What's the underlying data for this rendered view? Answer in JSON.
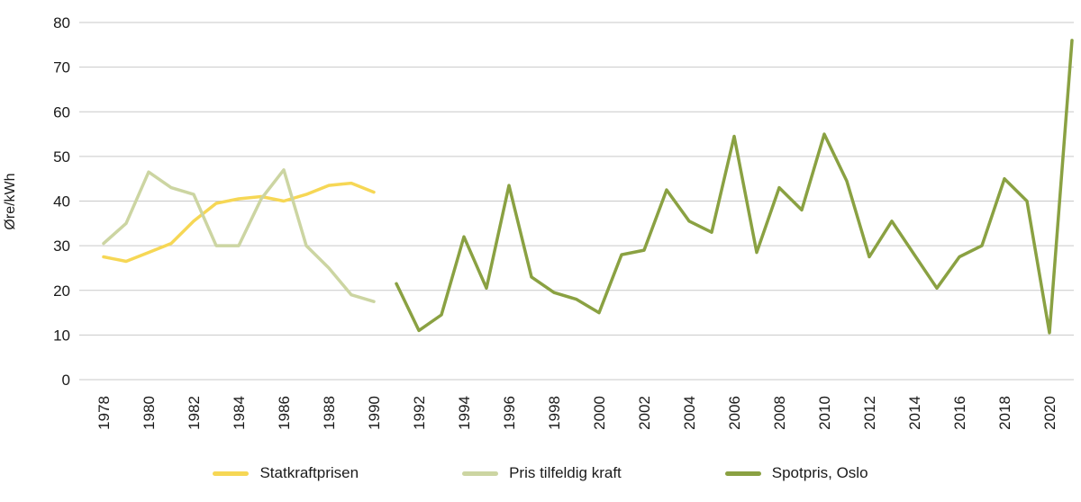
{
  "chart_data": {
    "type": "line",
    "title": "",
    "xlabel": "",
    "ylabel": "Øre/kWh",
    "ylim": [
      0,
      80
    ],
    "y_ticks": [
      0,
      10,
      20,
      30,
      40,
      50,
      60,
      70,
      80
    ],
    "x_tick_labels": [
      "1978",
      "1980",
      "1982",
      "1984",
      "1986",
      "1988",
      "1990",
      "1992",
      "1994",
      "1996",
      "1998",
      "2000",
      "2002",
      "2004",
      "2006",
      "2008",
      "2010",
      "2012",
      "2014",
      "2016",
      "2018",
      "2020"
    ],
    "x": [
      1978,
      1979,
      1980,
      1981,
      1982,
      1983,
      1984,
      1985,
      1986,
      1987,
      1988,
      1989,
      1990,
      1991,
      1992,
      1993,
      1994,
      1995,
      1996,
      1997,
      1998,
      1999,
      2000,
      2001,
      2002,
      2003,
      2004,
      2005,
      2006,
      2007,
      2008,
      2009,
      2010,
      2011,
      2012,
      2013,
      2014,
      2015,
      2016,
      2017,
      2018,
      2019,
      2020,
      2021
    ],
    "grid": "horizontal",
    "legend_position": "bottom",
    "grid_color": "#c9c9c9",
    "text_color": "#1a1a1a",
    "series": [
      {
        "name": "Statkraftprisen",
        "color": "#f6d755",
        "values": [
          27.5,
          26.5,
          28.5,
          30.5,
          35.5,
          39.5,
          40.5,
          41,
          40,
          41.5,
          43.5,
          44,
          42,
          null,
          null,
          null,
          null,
          null,
          null,
          null,
          null,
          null,
          null,
          null,
          null,
          null,
          null,
          null,
          null,
          null,
          null,
          null,
          null,
          null,
          null,
          null,
          null,
          null,
          null,
          null,
          null,
          null,
          null,
          null
        ]
      },
      {
        "name": "Pris tilfeldig kraft",
        "color": "#ccd5a2",
        "values": [
          30.5,
          35,
          46.5,
          43,
          41.5,
          30,
          30,
          40.5,
          47,
          30,
          25,
          19,
          17.5,
          null,
          null,
          null,
          null,
          null,
          null,
          null,
          null,
          null,
          null,
          null,
          null,
          null,
          null,
          null,
          null,
          null,
          null,
          null,
          null,
          null,
          null,
          null,
          null,
          null,
          null,
          null,
          null,
          null,
          null,
          null
        ]
      },
      {
        "name": "Spotpris, Oslo",
        "color": "#8aa142",
        "values": [
          null,
          null,
          null,
          null,
          null,
          null,
          null,
          null,
          null,
          null,
          null,
          null,
          null,
          21.5,
          11,
          14.5,
          32,
          20.5,
          43.5,
          23,
          19.5,
          18,
          15,
          28,
          29,
          42.5,
          35.5,
          33,
          54.5,
          28.5,
          43,
          38,
          55,
          44.5,
          27.5,
          35.5,
          28,
          20.5,
          27.5,
          30,
          45,
          40,
          10.5,
          76
        ]
      }
    ]
  }
}
